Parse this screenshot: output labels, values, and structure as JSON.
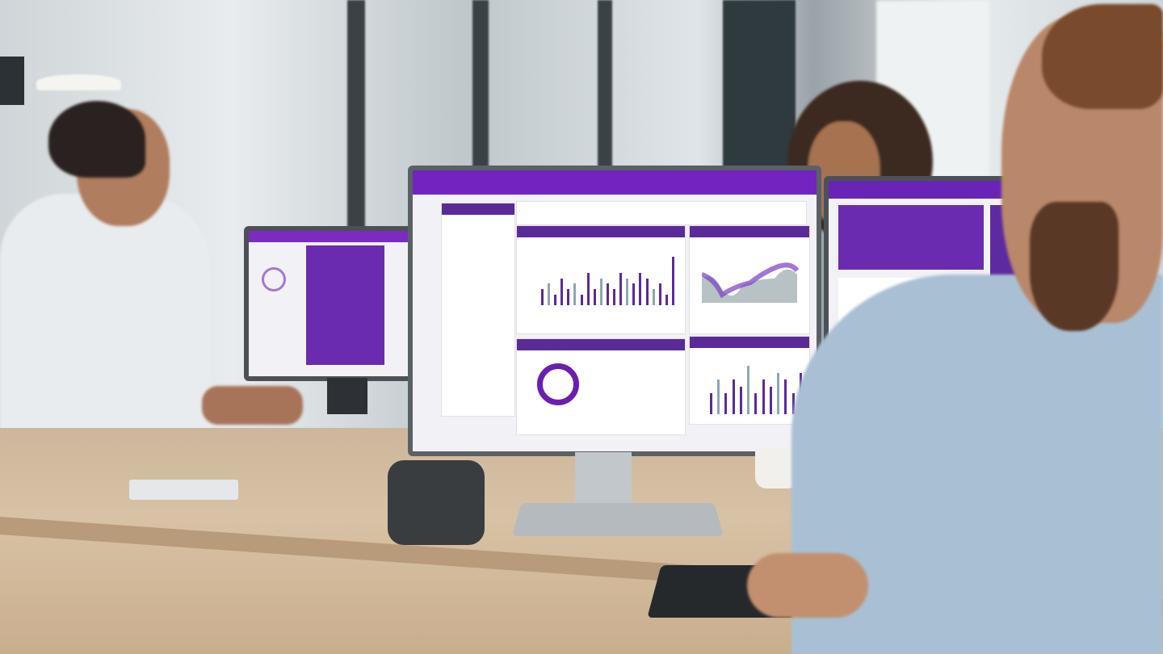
{
  "scene": {
    "description_colors": {
      "accent": "#6a1fb0",
      "header": "#7b2cbf",
      "desk": "#d3bc9f",
      "shirt": "#a9c0d4"
    }
  },
  "main_monitor": {
    "donut_value": "",
    "bars": [
      3,
      4,
      2,
      5,
      3,
      4,
      2,
      6,
      3,
      5,
      4,
      3,
      6,
      5,
      4,
      6,
      5,
      3,
      4,
      2,
      9
    ]
  },
  "lower_bars": [
    3,
    5,
    3,
    5,
    4,
    7,
    3,
    5,
    4,
    6,
    5,
    3,
    6
  ]
}
